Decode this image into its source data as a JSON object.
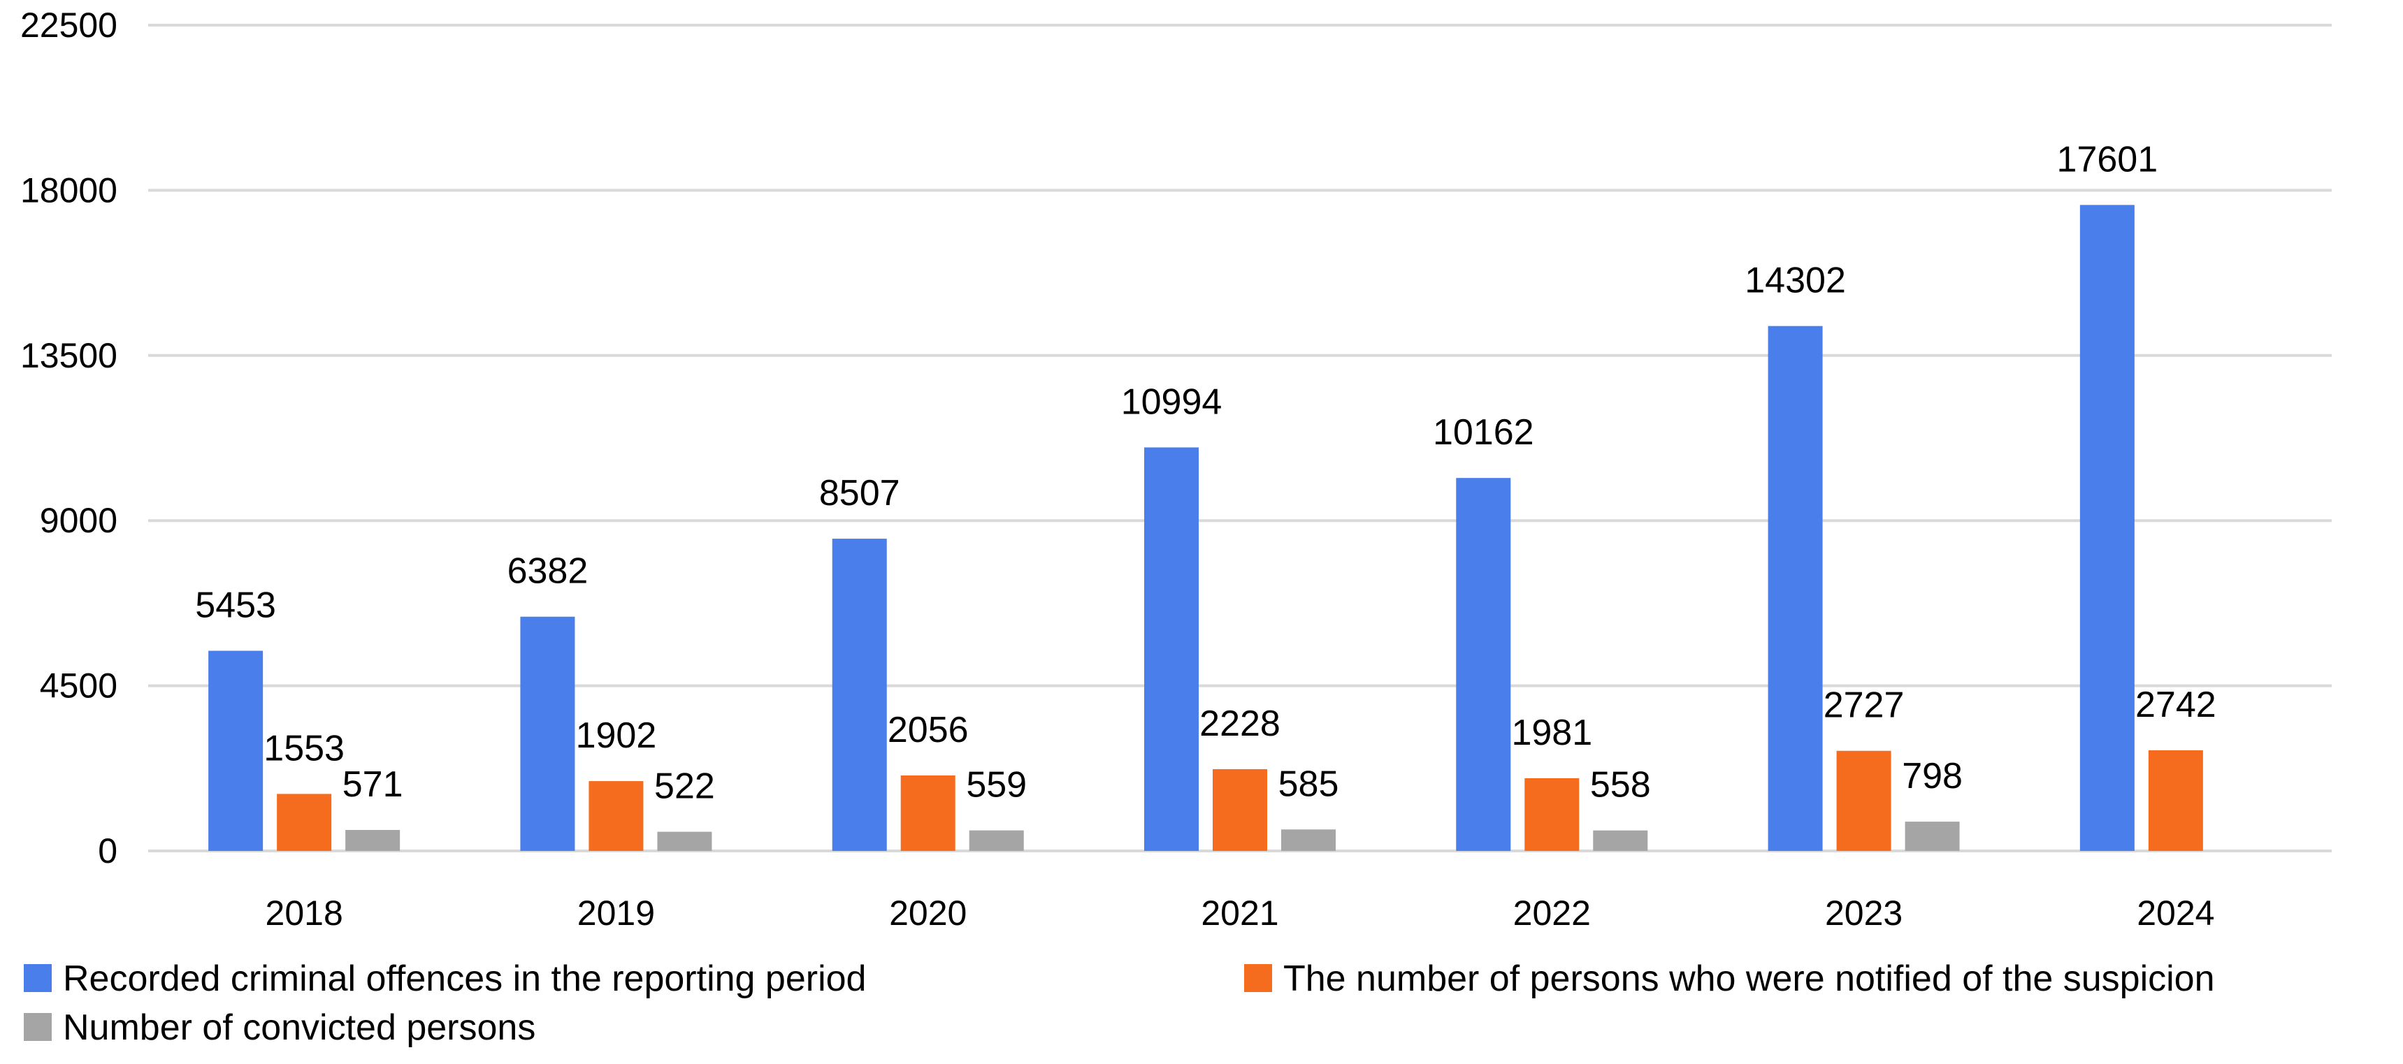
{
  "chart_data": {
    "type": "bar",
    "title": "",
    "xlabel": "",
    "ylabel": "",
    "categories": [
      "2018",
      "2019",
      "2020",
      "2021",
      "2022",
      "2023",
      "2024"
    ],
    "series": [
      {
        "name": "Recorded criminal offences in the reporting period",
        "color": "#4a7eea",
        "values": [
          5453,
          6382,
          8507,
          10994,
          10162,
          14302,
          17601
        ],
        "labels": [
          "5453",
          "6382",
          "8507",
          "10994",
          "10162",
          "14302",
          "17601"
        ]
      },
      {
        "name": "The number of persons who were notified of the suspicion",
        "color": "#f56c1e",
        "values": [
          1553,
          1902,
          2056,
          2228,
          1981,
          2727,
          2742
        ],
        "labels": [
          "1553",
          "1902",
          "2056",
          "2228",
          "1981",
          "2727",
          "2742"
        ]
      },
      {
        "name": "Number of convicted persons",
        "color": "#a5a5a5",
        "values": [
          571,
          522,
          559,
          585,
          558,
          798,
          null
        ],
        "labels": [
          "571",
          "522",
          "559",
          "585",
          "558",
          "798",
          null
        ]
      }
    ],
    "ylim": [
      0,
      22500
    ],
    "yticks": [
      0,
      4500,
      9000,
      13500,
      18000,
      22500
    ],
    "ytick_labels": [
      "0",
      "4500",
      "9000",
      "13500",
      "18000",
      "22500"
    ],
    "grid": true,
    "legend_position": "bottom"
  }
}
